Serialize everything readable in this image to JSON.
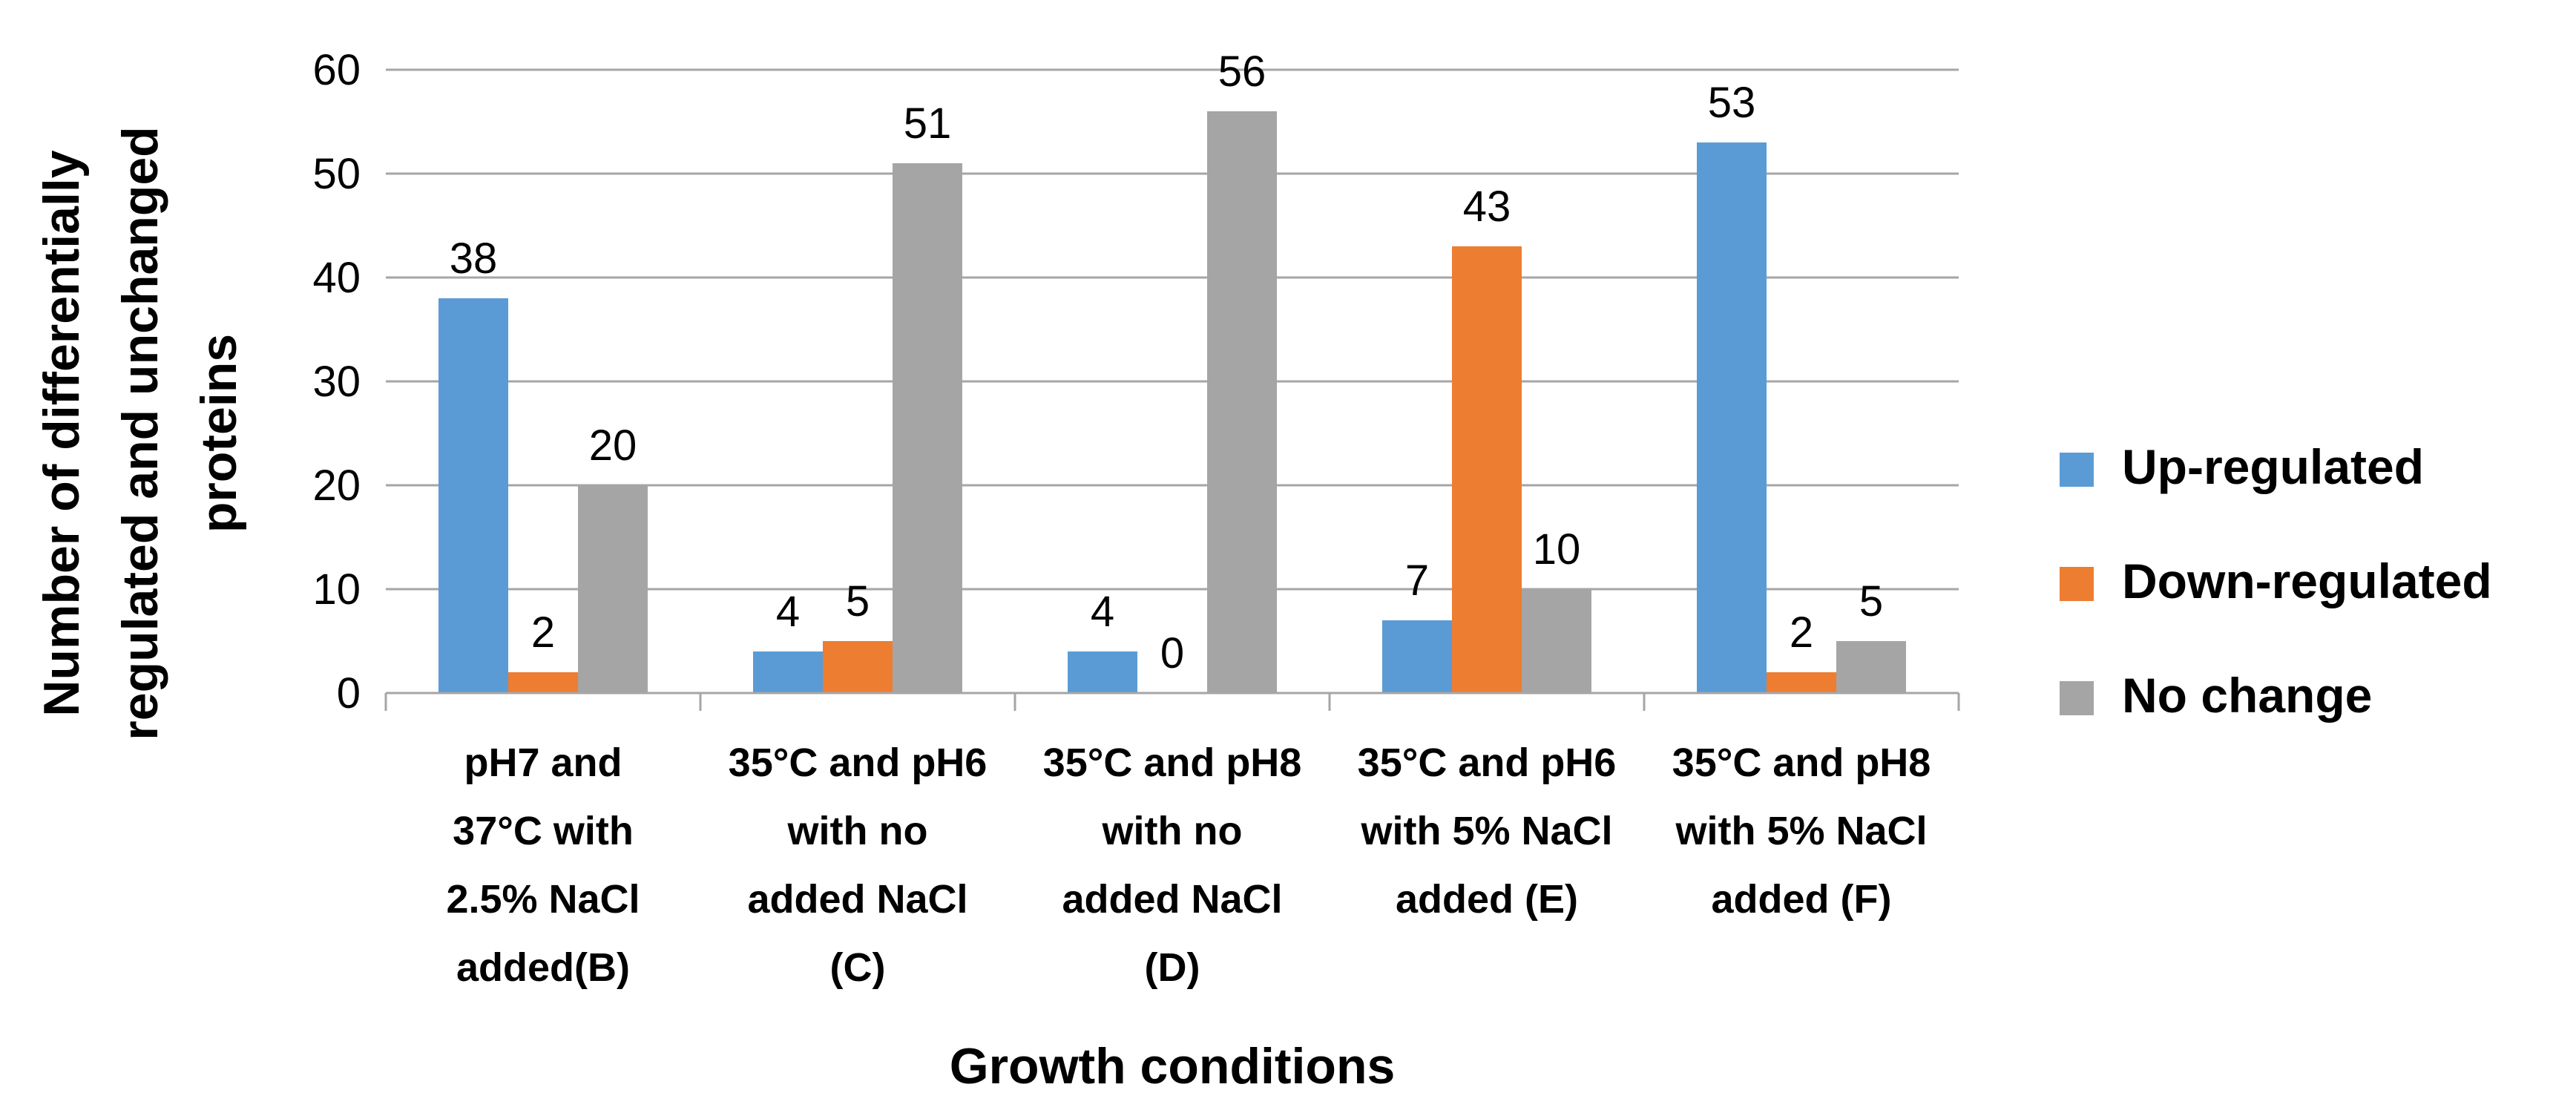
{
  "chart_data": {
    "type": "bar",
    "title": "",
    "xlabel": "Growth conditions",
    "ylabel_lines": [
      "Number of differentially",
      "regulated and unchanged",
      "proteins"
    ],
    "ylim": [
      0,
      60
    ],
    "yticks": [
      0,
      10,
      20,
      30,
      40,
      50,
      60
    ],
    "grid": true,
    "legend_position": "right",
    "categories": [
      [
        "pH7 and",
        "37°C with",
        "2.5% NaCl",
        "added(B)"
      ],
      [
        "35°C and pH6",
        "with no",
        "added NaCl",
        "(C)"
      ],
      [
        "35°C and pH8",
        "with no",
        "added NaCl",
        "(D)"
      ],
      [
        "35°C and pH6",
        "with 5% NaCl",
        "added (E)"
      ],
      [
        "35°C and pH8",
        "with 5% NaCl",
        "added (F)"
      ]
    ],
    "series": [
      {
        "name": "Up-regulated",
        "color": "#5B9BD5",
        "values": [
          38,
          4,
          4,
          7,
          53
        ]
      },
      {
        "name": "Down-regulated",
        "color": "#ED7D31",
        "values": [
          2,
          5,
          0,
          43,
          2
        ]
      },
      {
        "name": "No change",
        "color": "#A5A5A5",
        "values": [
          20,
          51,
          56,
          10,
          5
        ]
      }
    ]
  }
}
